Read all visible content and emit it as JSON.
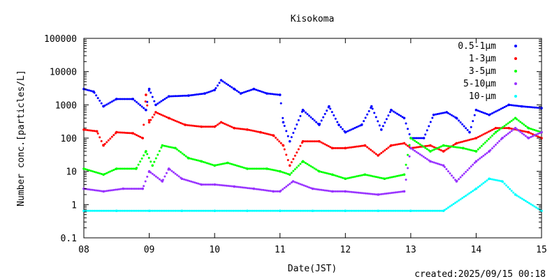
{
  "chart_data": {
    "type": "scatter",
    "title": "Kisokoma",
    "xlabel": "Date(JST)",
    "ylabel": "Number conc.[particles/L]",
    "footer": "created:2025/09/15 00:18",
    "y_scale": "log",
    "ylim": [
      0.1,
      100000
    ],
    "xlim": [
      8,
      15
    ],
    "x_ticks": [
      "08",
      "09",
      "10",
      "11",
      "12",
      "13",
      "14",
      "15"
    ],
    "y_ticks": [
      "0.1",
      "1",
      "10",
      "100",
      "1000",
      "10000",
      "100000"
    ],
    "grid": false,
    "legend_position": "top-right",
    "series": [
      {
        "name": "0.5-1μm",
        "color": "#0000ff",
        "points": [
          [
            8.0,
            3000
          ],
          [
            8.15,
            2500
          ],
          [
            8.3,
            900
          ],
          [
            8.5,
            1500
          ],
          [
            8.75,
            1500
          ],
          [
            8.95,
            700
          ],
          [
            9.0,
            3000
          ],
          [
            9.1,
            1000
          ],
          [
            9.3,
            1800
          ],
          [
            9.6,
            1900
          ],
          [
            9.85,
            2200
          ],
          [
            10.0,
            2800
          ],
          [
            10.1,
            5500
          ],
          [
            10.3,
            3000
          ],
          [
            10.4,
            2200
          ],
          [
            10.6,
            3000
          ],
          [
            10.8,
            2200
          ],
          [
            11.0,
            2000
          ],
          [
            11.05,
            300
          ],
          [
            11.15,
            80
          ],
          [
            11.35,
            700
          ],
          [
            11.6,
            250
          ],
          [
            11.75,
            900
          ],
          [
            11.9,
            250
          ],
          [
            12.0,
            150
          ],
          [
            12.25,
            250
          ],
          [
            12.4,
            900
          ],
          [
            12.55,
            180
          ],
          [
            12.7,
            700
          ],
          [
            12.9,
            400
          ],
          [
            13.0,
            100
          ],
          [
            13.2,
            100
          ],
          [
            13.35,
            500
          ],
          [
            13.55,
            600
          ],
          [
            13.7,
            400
          ],
          [
            13.9,
            150
          ],
          [
            14.0,
            700
          ],
          [
            14.2,
            500
          ],
          [
            14.5,
            1000
          ],
          [
            14.7,
            900
          ],
          [
            15.0,
            800
          ]
        ]
      },
      {
        "name": "1-3μm",
        "color": "#ff0000",
        "points": [
          [
            8.0,
            180
          ],
          [
            8.2,
            160
          ],
          [
            8.3,
            60
          ],
          [
            8.5,
            150
          ],
          [
            8.75,
            140
          ],
          [
            8.9,
            100
          ],
          [
            8.95,
            2000
          ],
          [
            9.0,
            300
          ],
          [
            9.1,
            600
          ],
          [
            9.3,
            400
          ],
          [
            9.55,
            250
          ],
          [
            9.8,
            220
          ],
          [
            10.0,
            220
          ],
          [
            10.1,
            300
          ],
          [
            10.3,
            200
          ],
          [
            10.5,
            180
          ],
          [
            10.7,
            150
          ],
          [
            10.9,
            120
          ],
          [
            11.05,
            60
          ],
          [
            11.15,
            15
          ],
          [
            11.35,
            80
          ],
          [
            11.6,
            80
          ],
          [
            11.8,
            50
          ],
          [
            12.0,
            50
          ],
          [
            12.3,
            60
          ],
          [
            12.5,
            30
          ],
          [
            12.7,
            60
          ],
          [
            12.9,
            70
          ],
          [
            13.0,
            50
          ],
          [
            13.3,
            60
          ],
          [
            13.5,
            40
          ],
          [
            13.7,
            70
          ],
          [
            14.0,
            100
          ],
          [
            14.3,
            200
          ],
          [
            14.5,
            200
          ],
          [
            14.8,
            150
          ],
          [
            15.0,
            100
          ]
        ]
      },
      {
        "name": "3-5μm",
        "color": "#00ff00",
        "points": [
          [
            8.0,
            12
          ],
          [
            8.3,
            8
          ],
          [
            8.5,
            12
          ],
          [
            8.8,
            12
          ],
          [
            8.95,
            40
          ],
          [
            9.05,
            15
          ],
          [
            9.2,
            60
          ],
          [
            9.4,
            50
          ],
          [
            9.6,
            25
          ],
          [
            9.8,
            20
          ],
          [
            10.0,
            15
          ],
          [
            10.2,
            18
          ],
          [
            10.5,
            12
          ],
          [
            10.8,
            12
          ],
          [
            11.0,
            10
          ],
          [
            11.15,
            8
          ],
          [
            11.35,
            20
          ],
          [
            11.6,
            10
          ],
          [
            11.8,
            8
          ],
          [
            12.0,
            6
          ],
          [
            12.3,
            8
          ],
          [
            12.6,
            6
          ],
          [
            12.9,
            8
          ],
          [
            13.0,
            100
          ],
          [
            13.3,
            40
          ],
          [
            13.5,
            60
          ],
          [
            13.8,
            50
          ],
          [
            14.0,
            40
          ],
          [
            14.3,
            150
          ],
          [
            14.6,
            400
          ],
          [
            14.8,
            200
          ],
          [
            15.0,
            150
          ]
        ]
      },
      {
        "name": "5-10μm",
        "color": "#9933ff",
        "points": [
          [
            8.0,
            3
          ],
          [
            8.3,
            2.5
          ],
          [
            8.6,
            3
          ],
          [
            8.9,
            3
          ],
          [
            9.0,
            10
          ],
          [
            9.2,
            5
          ],
          [
            9.3,
            12
          ],
          [
            9.5,
            6
          ],
          [
            9.8,
            4
          ],
          [
            10.0,
            4
          ],
          [
            10.3,
            3.5
          ],
          [
            10.6,
            3
          ],
          [
            10.9,
            2.5
          ],
          [
            11.0,
            2.5
          ],
          [
            11.2,
            5
          ],
          [
            11.5,
            3
          ],
          [
            11.8,
            2.5
          ],
          [
            12.0,
            2.5
          ],
          [
            12.5,
            2
          ],
          [
            12.9,
            2.5
          ],
          [
            13.0,
            50
          ],
          [
            13.3,
            20
          ],
          [
            13.5,
            15
          ],
          [
            13.7,
            5
          ],
          [
            14.0,
            20
          ],
          [
            14.2,
            40
          ],
          [
            14.4,
            100
          ],
          [
            14.6,
            200
          ],
          [
            14.8,
            100
          ],
          [
            15.0,
            150
          ]
        ]
      },
      {
        "name": "10-μm",
        "color": "#00ffff",
        "points": [
          [
            8.0,
            0.65
          ],
          [
            8.5,
            0.65
          ],
          [
            9.0,
            0.65
          ],
          [
            9.5,
            0.65
          ],
          [
            10.0,
            0.65
          ],
          [
            10.5,
            0.65
          ],
          [
            11.0,
            0.65
          ],
          [
            11.5,
            0.65
          ],
          [
            12.0,
            0.65
          ],
          [
            12.5,
            0.65
          ],
          [
            13.0,
            0.65
          ],
          [
            13.5,
            0.65
          ],
          [
            14.0,
            3
          ],
          [
            14.2,
            6
          ],
          [
            14.4,
            5
          ],
          [
            14.6,
            2
          ],
          [
            15.0,
            0.65
          ]
        ]
      }
    ]
  }
}
